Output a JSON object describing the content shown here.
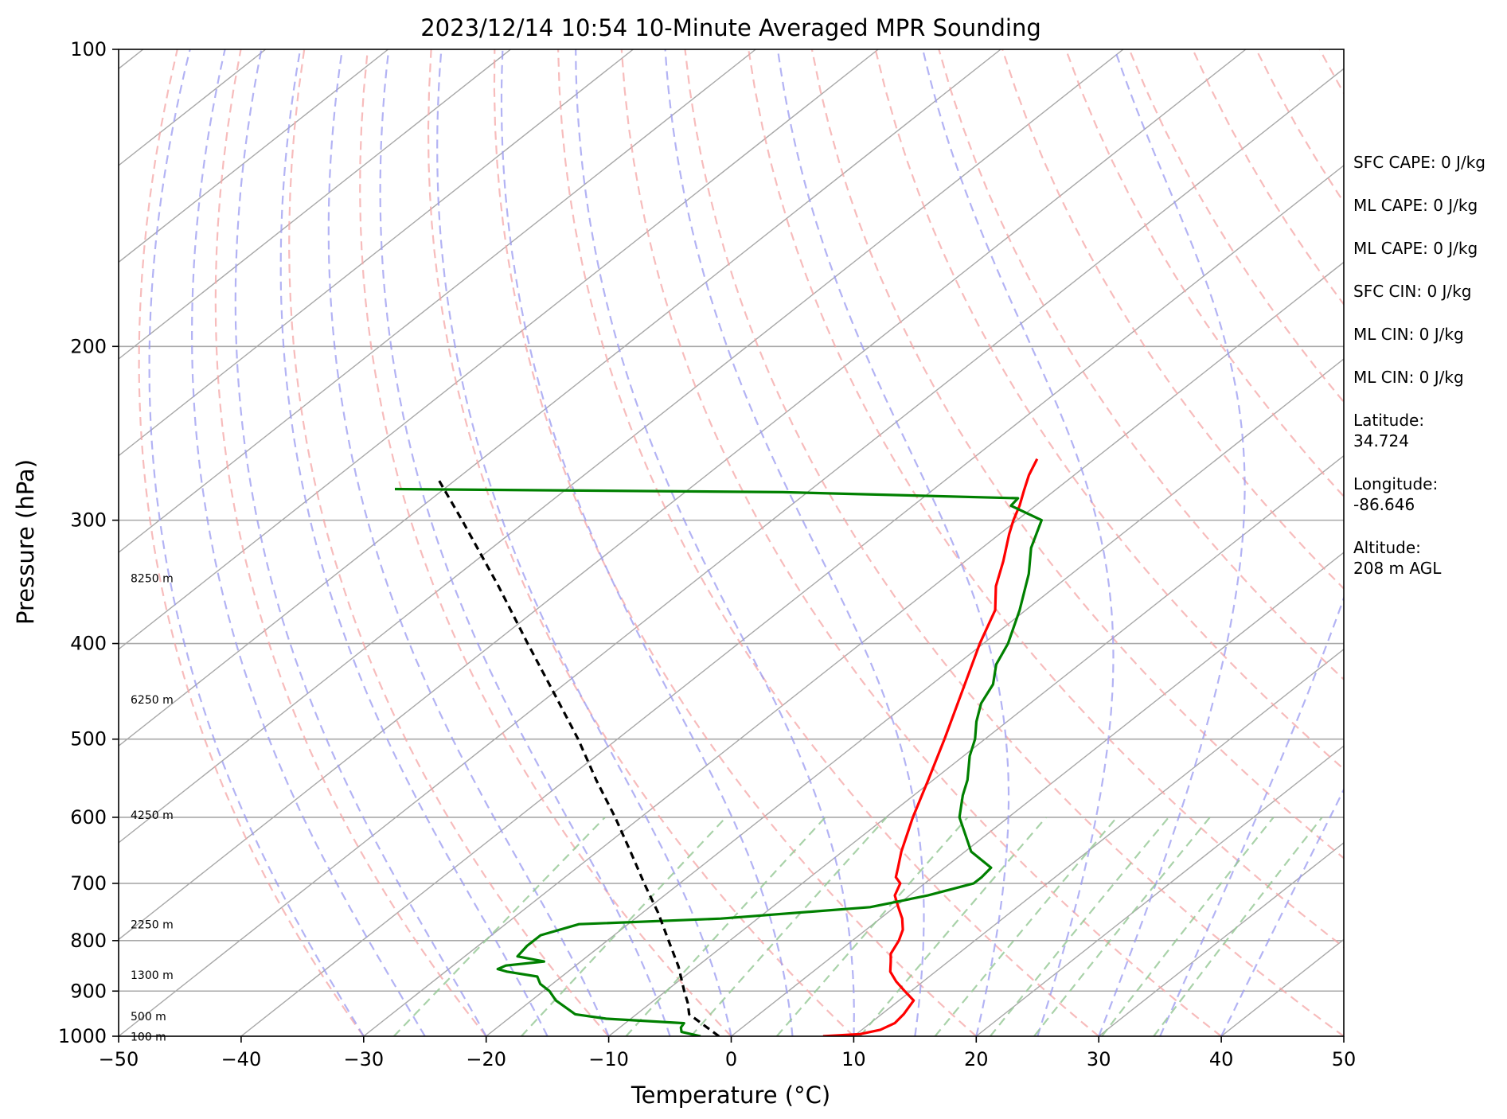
{
  "chart_data": {
    "type": "line",
    "title": "2023/12/14 10:54 10-Minute Averaged MPR Sounding",
    "xlabel": "Temperature (°C)",
    "ylabel": "Pressure (hPa)",
    "xlim": [
      -50,
      50
    ],
    "ylim": [
      1000,
      100
    ],
    "y_scale": "log",
    "skew_T": true,
    "grid": true,
    "x_ticks": [
      -50,
      -40,
      -30,
      -20,
      -10,
      0,
      10,
      20,
      30,
      40,
      50
    ],
    "x_tick_labels": [
      "−50",
      "−40",
      "−30",
      "−20",
      "−10",
      "0",
      "10",
      "20",
      "30",
      "40",
      "50"
    ],
    "y_ticks": [
      100,
      200,
      300,
      400,
      500,
      600,
      700,
      800,
      900,
      1000
    ],
    "y_tick_labels": [
      "100",
      "200",
      "300",
      "400",
      "500",
      "600",
      "700",
      "800",
      "900",
      "1000"
    ],
    "series": [
      {
        "role": "temperature",
        "color": "#ff0000",
        "points": [
          [
            1000,
            7.5
          ],
          [
            995,
            10.3
          ],
          [
            985,
            11.5
          ],
          [
            970,
            12.0
          ],
          [
            950,
            11.8
          ],
          [
            920,
            11.2
          ],
          [
            900,
            9.5
          ],
          [
            880,
            7.8
          ],
          [
            860,
            6.3
          ],
          [
            840,
            5.3
          ],
          [
            825,
            4.5
          ],
          [
            800,
            3.8
          ],
          [
            780,
            3.0
          ],
          [
            760,
            1.8
          ],
          [
            740,
            0.3
          ],
          [
            720,
            -1.2
          ],
          [
            700,
            -2.0
          ],
          [
            690,
            -3.0
          ],
          [
            675,
            -3.8
          ],
          [
            650,
            -5.2
          ],
          [
            600,
            -7.8
          ],
          [
            550,
            -10.4
          ],
          [
            500,
            -13.3
          ],
          [
            450,
            -16.6
          ],
          [
            400,
            -20.3
          ],
          [
            370,
            -22.5
          ],
          [
            350,
            -24.9
          ],
          [
            330,
            -26.9
          ],
          [
            310,
            -29.2
          ],
          [
            300,
            -30.3
          ],
          [
            290,
            -31.3
          ],
          [
            280,
            -32.5
          ],
          [
            270,
            -33.7
          ],
          [
            260,
            -34.7
          ]
        ]
      },
      {
        "role": "dewpoint",
        "color": "#008000",
        "points": [
          [
            1000,
            -2.5
          ],
          [
            990,
            -4.5
          ],
          [
            980,
            -5.0
          ],
          [
            970,
            -5.2
          ],
          [
            960,
            -12.0
          ],
          [
            950,
            -15.0
          ],
          [
            920,
            -18.0
          ],
          [
            900,
            -19.5
          ],
          [
            885,
            -21.0
          ],
          [
            870,
            -22.0
          ],
          [
            860,
            -25.0
          ],
          [
            855,
            -26.0
          ],
          [
            848,
            -25.7
          ],
          [
            840,
            -23.0
          ],
          [
            830,
            -25.7
          ],
          [
            810,
            -26.0
          ],
          [
            790,
            -26.0
          ],
          [
            770,
            -24.0
          ],
          [
            760,
            -13.0
          ],
          [
            740,
            -2.0
          ],
          [
            720,
            1.5
          ],
          [
            700,
            4.0
          ],
          [
            690,
            4.0
          ],
          [
            675,
            3.8
          ],
          [
            650,
            0.5
          ],
          [
            600,
            -4.0
          ],
          [
            570,
            -6.0
          ],
          [
            550,
            -7.2
          ],
          [
            520,
            -9.5
          ],
          [
            500,
            -10.8
          ],
          [
            480,
            -12.5
          ],
          [
            460,
            -14.0
          ],
          [
            440,
            -15.0
          ],
          [
            420,
            -16.8
          ],
          [
            400,
            -18.0
          ],
          [
            370,
            -20.5
          ],
          [
            340,
            -23.5
          ],
          [
            320,
            -26.0
          ],
          [
            300,
            -28.0
          ],
          [
            290,
            -32.0
          ],
          [
            285,
            -32.2
          ],
          [
            281,
            -52.0
          ],
          [
            279,
            -84.0
          ]
        ]
      },
      {
        "role": "parcel",
        "color": "#000000",
        "dashed": true,
        "points": [
          [
            1000,
            -1.0
          ],
          [
            950,
            -5.7
          ],
          [
            925,
            -7.0
          ],
          [
            900,
            -8.5
          ],
          [
            850,
            -11.5
          ],
          [
            800,
            -15.0
          ],
          [
            750,
            -18.7
          ],
          [
            700,
            -22.9
          ],
          [
            650,
            -27.3
          ],
          [
            600,
            -32.1
          ],
          [
            550,
            -37.5
          ],
          [
            500,
            -43.2
          ],
          [
            450,
            -49.8
          ],
          [
            400,
            -57.2
          ],
          [
            350,
            -65.5
          ],
          [
            300,
            -75.3
          ],
          [
            273,
            -81.4
          ]
        ]
      }
    ],
    "height_labels": [
      "100 m",
      "500 m",
      "1300 m",
      "2250 m",
      "4250 m",
      "6250 m",
      "8250 m"
    ],
    "info_panel": [
      "SFC CAPE: 0 J/kg",
      "ML CAPE: 0 J/kg",
      "ML CAPE: 0 J/kg",
      "SFC CIN: 0 J/kg",
      "ML CIN: 0 J/kg",
      "ML CIN: 0 J/kg",
      "Latitude:",
      "34.724",
      "Longitude:",
      "-86.646",
      "Altitude:",
      "208 m AGL"
    ],
    "colors": {
      "temperature": "#ff0000",
      "dewpoint": "#008000",
      "parcel": "#000000",
      "dry_adiabats": "#f4a6a6",
      "moist_adiabats": "#9a9af0",
      "mixing_ratio": "#93c793",
      "isotherms": "#a8a8a8",
      "isobars": "#a8a8a8"
    }
  }
}
